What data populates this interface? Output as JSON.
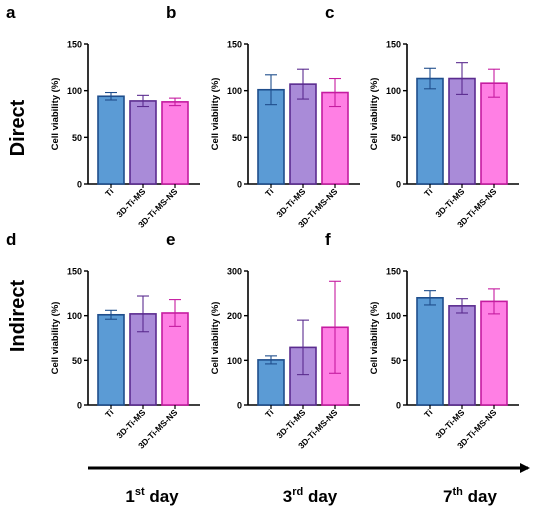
{
  "row_labels": [
    "Direct",
    "Indirect"
  ],
  "day_labels": [
    {
      "num": "1",
      "sup": "st",
      "word": " day"
    },
    {
      "num": "3",
      "sup": "rd",
      "word": " day"
    },
    {
      "num": "7",
      "sup": "th",
      "word": " day"
    }
  ],
  "colors": {
    "Ti": {
      "fill": "#5b9bd5",
      "stroke": "#1f4e8c"
    },
    "3D-Ti-MS": {
      "fill": "#a98bd8",
      "stroke": "#5b2c8f"
    },
    "3D-Ti-MS-NS": {
      "fill": "#ff7fe4",
      "stroke": "#c51ca0"
    }
  },
  "chart_data": [
    {
      "panel": "a",
      "type": "bar",
      "ylabel": "Cell viability (%)",
      "categories": [
        "Ti",
        "3D-Ti-MS",
        "3D-Ti-MS-NS"
      ],
      "values": [
        94,
        89,
        88
      ],
      "errors": [
        4,
        6,
        4
      ],
      "ylim": [
        0,
        150
      ],
      "yticks": [
        0,
        50,
        100,
        150
      ]
    },
    {
      "panel": "b",
      "type": "bar",
      "ylabel": "Cell viability (%)",
      "categories": [
        "Ti",
        "3D-Ti-MS",
        "3D-Ti-MS-NS"
      ],
      "values": [
        101,
        107,
        98
      ],
      "errors": [
        16,
        16,
        15
      ],
      "ylim": [
        0,
        150
      ],
      "yticks": [
        0,
        50,
        100,
        150
      ]
    },
    {
      "panel": "c",
      "type": "bar",
      "ylabel": "Cell viability (%)",
      "categories": [
        "Ti",
        "3D-Ti-MS",
        "3D-Ti-MS-NS"
      ],
      "values": [
        113,
        113,
        108
      ],
      "errors": [
        11,
        17,
        15
      ],
      "ylim": [
        0,
        150
      ],
      "yticks": [
        0,
        50,
        100,
        150
      ]
    },
    {
      "panel": "d",
      "type": "bar",
      "ylabel": "Cell viability (%)",
      "categories": [
        "Ti",
        "3D-Ti-MS",
        "3D-Ti-MS-NS"
      ],
      "values": [
        101,
        102,
        103
      ],
      "errors": [
        5,
        20,
        15
      ],
      "ylim": [
        0,
        150
      ],
      "yticks": [
        0,
        50,
        100,
        150
      ]
    },
    {
      "panel": "e",
      "type": "bar",
      "ylabel": "Cell viability (%)",
      "categories": [
        "Ti",
        "3D-Ti-MS",
        "3D-Ti-MS-NS"
      ],
      "values": [
        101,
        129,
        174
      ],
      "errors": [
        9,
        61,
        103
      ],
      "ylim": [
        0,
        300
      ],
      "yticks": [
        0,
        100,
        200,
        300
      ]
    },
    {
      "panel": "f",
      "type": "bar",
      "ylabel": "Cell viability (%)",
      "categories": [
        "Ti",
        "3D-Ti-MS",
        "3D-Ti-MS-NS"
      ],
      "values": [
        120,
        111,
        116
      ],
      "errors": [
        8,
        8,
        14
      ],
      "ylim": [
        0,
        150
      ],
      "yticks": [
        0,
        50,
        100,
        150
      ]
    }
  ]
}
